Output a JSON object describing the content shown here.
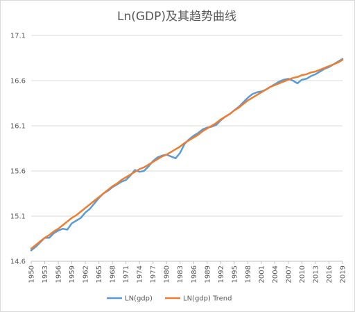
{
  "chart_data": {
    "type": "line",
    "title": "Ln(GDP)及其趋势曲线",
    "xlabel": "",
    "ylabel": "",
    "ylim": [
      14.6,
      17.1
    ],
    "y_ticks": [
      "14.6",
      "15.1",
      "15.6",
      "16.1",
      "16.6",
      "17.1"
    ],
    "x_tick_labels": [
      "1950",
      "1953",
      "1956",
      "1959",
      "1962",
      "1965",
      "1968",
      "1971",
      "1974",
      "1977",
      "1980",
      "1983",
      "1986",
      "1989",
      "1992",
      "1995",
      "1998",
      "2001",
      "2004",
      "2007",
      "2010",
      "2013",
      "2016",
      "2019"
    ],
    "grid": true,
    "legend": "bottom",
    "x": [
      1950,
      1951,
      1952,
      1953,
      1954,
      1955,
      1956,
      1957,
      1958,
      1959,
      1960,
      1961,
      1962,
      1963,
      1964,
      1965,
      1966,
      1967,
      1968,
      1969,
      1970,
      1971,
      1972,
      1973,
      1974,
      1975,
      1976,
      1977,
      1978,
      1979,
      1980,
      1981,
      1982,
      1983,
      1984,
      1985,
      1986,
      1987,
      1988,
      1989,
      1990,
      1991,
      1992,
      1993,
      1994,
      1995,
      1996,
      1997,
      1998,
      1999,
      2000,
      2001,
      2002,
      2003,
      2004,
      2005,
      2006,
      2007,
      2008,
      2009,
      2010,
      2011,
      2012,
      2013,
      2014,
      2015,
      2016,
      2017,
      2018,
      2019
    ],
    "series": [
      {
        "name": "LN(gdp)",
        "color": "#5b9bd5",
        "values": [
          14.72,
          14.76,
          14.81,
          14.86,
          14.86,
          14.91,
          14.94,
          14.96,
          14.95,
          15.02,
          15.05,
          15.08,
          15.14,
          15.18,
          15.24,
          15.3,
          15.35,
          15.38,
          15.42,
          15.45,
          15.48,
          15.5,
          15.55,
          15.61,
          15.59,
          15.6,
          15.65,
          15.71,
          15.75,
          15.77,
          15.78,
          15.76,
          15.74,
          15.8,
          15.9,
          15.95,
          15.99,
          16.02,
          16.06,
          16.08,
          16.09,
          16.11,
          16.16,
          16.2,
          16.23,
          16.27,
          16.31,
          16.36,
          16.41,
          16.45,
          16.47,
          16.48,
          16.5,
          16.53,
          16.56,
          16.59,
          16.61,
          16.62,
          16.6,
          16.57,
          16.61,
          16.62,
          16.65,
          16.67,
          16.7,
          16.73,
          16.75,
          16.78,
          16.81,
          16.84
        ]
      },
      {
        "name": "LN(gdp) Trend",
        "color": "#ed7d31",
        "values": [
          14.74,
          14.78,
          14.82,
          14.86,
          14.89,
          14.93,
          14.96,
          15.0,
          15.04,
          15.08,
          15.11,
          15.15,
          15.19,
          15.23,
          15.27,
          15.31,
          15.35,
          15.39,
          15.43,
          15.46,
          15.5,
          15.53,
          15.56,
          15.59,
          15.62,
          15.64,
          15.67,
          15.7,
          15.73,
          15.76,
          15.78,
          15.81,
          15.84,
          15.87,
          15.91,
          15.94,
          15.97,
          16.0,
          16.04,
          16.07,
          16.1,
          16.13,
          16.17,
          16.2,
          16.23,
          16.27,
          16.3,
          16.34,
          16.38,
          16.41,
          16.44,
          16.47,
          16.5,
          16.53,
          16.55,
          16.57,
          16.59,
          16.61,
          16.63,
          16.64,
          16.66,
          16.67,
          16.69,
          16.7,
          16.72,
          16.74,
          16.76,
          16.78,
          16.8,
          16.83
        ]
      }
    ]
  }
}
